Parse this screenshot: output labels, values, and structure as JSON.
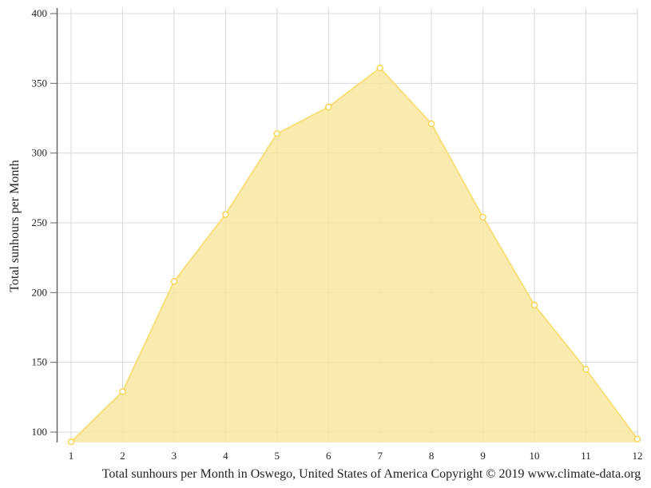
{
  "chart_data": {
    "type": "area",
    "title": "Total sunhours per Month in Oswego, United States of America Copyright © 2019 www.climate-data.org",
    "xlabel": "",
    "ylabel": "Total sunhours per Month",
    "categories": [
      "1",
      "2",
      "3",
      "4",
      "5",
      "6",
      "7",
      "8",
      "9",
      "10",
      "11",
      "12"
    ],
    "series": [
      {
        "name": "Total sunhours per Month",
        "values": [
          93,
          129,
          208,
          256,
          314,
          333,
          361,
          321,
          254,
          191,
          145,
          95
        ],
        "color": "#f7df7e"
      }
    ],
    "yticks": [
      100,
      150,
      200,
      250,
      300,
      350,
      400
    ],
    "ylim": [
      93,
      404
    ],
    "grid": true,
    "legend": "none"
  },
  "colors": {
    "fill": "#f8e89f",
    "line": "#f7df7e",
    "marker_stroke": "#f5d55a",
    "grid": "#d8d8d8",
    "axis": "#666666"
  }
}
